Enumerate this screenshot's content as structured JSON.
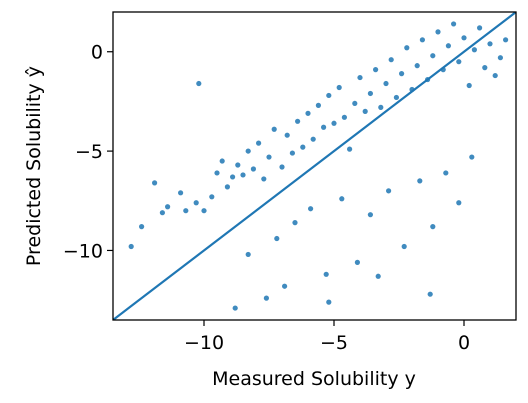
{
  "chart_data": {
    "type": "scatter",
    "title": "",
    "xlabel": "Measured Solubility y",
    "ylabel": "Predicted Solubility ŷ",
    "xlim": [
      -13.5,
      2.0
    ],
    "ylim": [
      -13.5,
      2.0
    ],
    "xticks": [
      -10,
      -5,
      0
    ],
    "yticks": [
      0,
      -5,
      -10
    ],
    "tick_labels": {
      "x": [
        "−10",
        "−5",
        "0"
      ],
      "y": [
        "0",
        "−5",
        "−10"
      ]
    },
    "grid": false,
    "legend": "none",
    "color": "#1f77b4",
    "reference_line": {
      "type": "identity",
      "x": [
        -13.5,
        2.0
      ],
      "y": [
        -13.5,
        2.0
      ]
    },
    "series": [
      {
        "values_xy": [
          [
            -12.8,
            -9.8
          ],
          [
            -12.4,
            -8.8
          ],
          [
            -11.9,
            -6.6
          ],
          [
            -11.6,
            -8.1
          ],
          [
            -11.4,
            -7.8
          ],
          [
            -10.9,
            -7.1
          ],
          [
            -10.7,
            -8.0
          ],
          [
            -10.3,
            -7.6
          ],
          [
            -10.0,
            -8.0
          ],
          [
            -9.7,
            -7.3
          ],
          [
            -9.5,
            -6.1
          ],
          [
            -10.2,
            -1.6
          ],
          [
            -9.3,
            -5.5
          ],
          [
            -9.1,
            -6.8
          ],
          [
            -8.9,
            -6.3
          ],
          [
            -8.7,
            -5.7
          ],
          [
            -8.5,
            -6.2
          ],
          [
            -8.3,
            -5.0
          ],
          [
            -8.1,
            -5.9
          ],
          [
            -7.9,
            -4.6
          ],
          [
            -7.7,
            -6.4
          ],
          [
            -7.5,
            -5.3
          ],
          [
            -7.3,
            -3.9
          ],
          [
            -7.0,
            -5.8
          ],
          [
            -6.8,
            -4.2
          ],
          [
            -6.6,
            -5.1
          ],
          [
            -6.4,
            -3.5
          ],
          [
            -6.2,
            -4.8
          ],
          [
            -6.0,
            -3.1
          ],
          [
            -5.8,
            -4.4
          ],
          [
            -5.6,
            -2.7
          ],
          [
            -5.4,
            -3.8
          ],
          [
            -5.2,
            -2.2
          ],
          [
            -5.0,
            -3.6
          ],
          [
            -4.8,
            -1.8
          ],
          [
            -4.6,
            -3.3
          ],
          [
            -4.4,
            -4.9
          ],
          [
            -4.2,
            -2.6
          ],
          [
            -4.0,
            -1.3
          ],
          [
            -3.8,
            -3.0
          ],
          [
            -3.6,
            -2.1
          ],
          [
            -3.4,
            -0.9
          ],
          [
            -3.2,
            -2.8
          ],
          [
            -3.0,
            -1.6
          ],
          [
            -2.8,
            -0.4
          ],
          [
            -2.6,
            -2.3
          ],
          [
            -2.4,
            -1.1
          ],
          [
            -2.2,
            0.2
          ],
          [
            -2.0,
            -1.9
          ],
          [
            -1.8,
            -0.7
          ],
          [
            -1.6,
            0.6
          ],
          [
            -1.4,
            -1.4
          ],
          [
            -1.2,
            -0.2
          ],
          [
            -1.0,
            1.0
          ],
          [
            -0.8,
            -0.9
          ],
          [
            -0.6,
            0.3
          ],
          [
            -0.4,
            1.4
          ],
          [
            -0.2,
            -0.5
          ],
          [
            0.0,
            0.7
          ],
          [
            0.2,
            -1.7
          ],
          [
            0.4,
            0.1
          ],
          [
            0.6,
            1.2
          ],
          [
            0.8,
            -0.8
          ],
          [
            1.0,
            0.4
          ],
          [
            1.2,
            -1.2
          ],
          [
            1.4,
            -0.3
          ],
          [
            1.6,
            0.6
          ],
          [
            -8.8,
            -12.9
          ],
          [
            -7.6,
            -12.4
          ],
          [
            -6.9,
            -11.8
          ],
          [
            -8.3,
            -10.2
          ],
          [
            -7.2,
            -9.4
          ],
          [
            -6.5,
            -8.6
          ],
          [
            -5.9,
            -7.9
          ],
          [
            -5.3,
            -11.2
          ],
          [
            -4.7,
            -7.4
          ],
          [
            -4.1,
            -10.6
          ],
          [
            -3.6,
            -8.2
          ],
          [
            -2.9,
            -7.0
          ],
          [
            -2.3,
            -9.8
          ],
          [
            -1.7,
            -6.5
          ],
          [
            -1.2,
            -8.8
          ],
          [
            -0.7,
            -6.1
          ],
          [
            -0.2,
            -7.6
          ],
          [
            0.3,
            -5.3
          ],
          [
            -1.3,
            -12.2
          ],
          [
            -5.2,
            -12.6
          ],
          [
            -3.3,
            -11.3
          ]
        ]
      }
    ]
  }
}
